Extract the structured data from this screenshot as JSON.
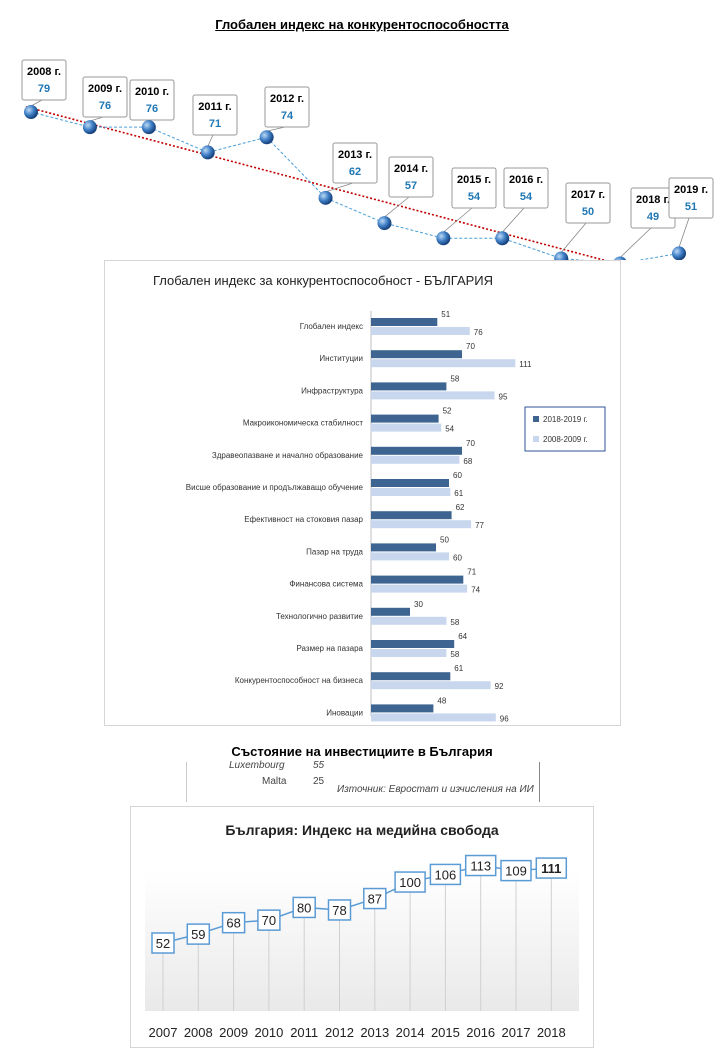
{
  "page_title": "Глобален индекс на конкурентоспособността",
  "investment_title": "Състояние на инвестициите в България",
  "investment_fragment": {
    "row1_label": "Luxembourg",
    "row1_value": "55",
    "row2_label": "Malta",
    "row2_value": "25",
    "source": "Източник: Евростат и изчисления на ИИ"
  },
  "chart_data": [
    {
      "type": "line",
      "title": "",
      "x": [
        "2008 г.",
        "2009 г.",
        "2010 г.",
        "2011 г.",
        "2012 г.",
        "2013 г.",
        "2014 г.",
        "2015 г.",
        "2016 г.",
        "2017 г.",
        "2018 г.",
        "2019 г."
      ],
      "values": [
        79,
        76,
        76,
        71,
        74,
        62,
        57,
        54,
        54,
        50,
        49,
        51
      ],
      "trendline": true,
      "colors": {
        "line": "#4a9fd8",
        "trend": "#c00000",
        "label_value": "#1f77b4"
      }
    },
    {
      "type": "bar",
      "title": "Глобален индекс за конкурентоспособност - БЪЛГАРИЯ",
      "categories": [
        "Глобален индекс",
        "Институции",
        "Инфраструктура",
        "Макроикономическа стабилност",
        "Здравеопазване и начално образование",
        "Висше образование и продължаващо обучение",
        "Ефективност на стоковия пазар",
        "Пазар на труда",
        "Финансова система",
        "Технологично развитие",
        "Размер на пазара",
        "Конкурентоспособност на бизнеса",
        "Иновации"
      ],
      "series": [
        {
          "name": "2018-2019 г.",
          "values": [
            51,
            70,
            58,
            52,
            70,
            60,
            62,
            50,
            71,
            30,
            64,
            61,
            48
          ],
          "color": "#3e6591"
        },
        {
          "name": "2008-2009 г.",
          "values": [
            76,
            111,
            95,
            54,
            68,
            61,
            77,
            60,
            74,
            58,
            58,
            92,
            96
          ],
          "color": "#c9d7ee"
        }
      ],
      "xlim": [
        0,
        111
      ],
      "legend": "right"
    },
    {
      "type": "line",
      "title": "България: Индекс на медийна свобода",
      "x": [
        "2007",
        "2008",
        "2009",
        "2010",
        "2011",
        "2012",
        "2013",
        "2014",
        "2015",
        "2016",
        "2017",
        "2018"
      ],
      "values": [
        52,
        59,
        68,
        70,
        80,
        78,
        87,
        100,
        106,
        113,
        109,
        111
      ],
      "colors": {
        "line": "#5b9bd5",
        "box_border": "#5b9bd5"
      }
    }
  ]
}
